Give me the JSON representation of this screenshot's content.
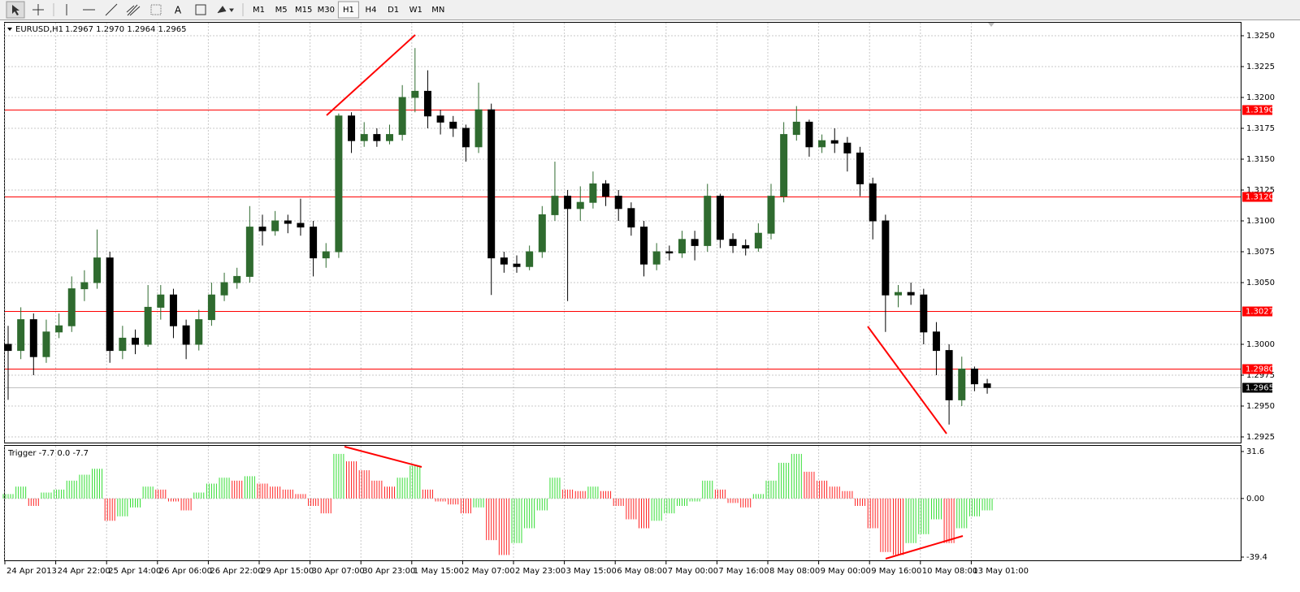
{
  "toolbar": {
    "timeframes": [
      "M1",
      "M5",
      "M15",
      "M30",
      "H1",
      "H4",
      "D1",
      "W1",
      "MN"
    ]
  },
  "chart_data": [
    {
      "type": "candlestick",
      "title": "EURUSD,H1",
      "subtitle": "1.2967 1.2970 1.2964 1.2965",
      "categories": [
        "24 Apr 2013",
        null,
        null,
        null,
        "24 Apr 22:00",
        null,
        null,
        null,
        "25 Apr 14:00",
        null,
        null,
        null,
        "26 Apr 06:00",
        null,
        null,
        null,
        "26 Apr 22:00",
        null,
        null,
        null,
        "29 Apr 15:00",
        null,
        null,
        null,
        "30 Apr 07:00",
        null,
        null,
        null,
        "30 Apr 23:00",
        null,
        null,
        null,
        "1 May 15:00",
        null,
        null,
        null,
        "2 May 07:00",
        null,
        null,
        null,
        "2 May 23:00",
        null,
        null,
        null,
        "3 May 15:00",
        null,
        null,
        null,
        "6 May 08:00",
        null,
        null,
        null,
        "7 May 00:00",
        null,
        null,
        null,
        "7 May 16:00",
        null,
        null,
        null,
        "8 May 08:00",
        null,
        null,
        null,
        "9 May 00:00",
        null,
        null,
        null,
        "9 May 16:00",
        null,
        null,
        null,
        "10 May 08:00",
        null,
        null,
        null,
        "13 May 01:00",
        null
      ],
      "open": [
        1.3,
        1.2995,
        1.302,
        1.299,
        1.301,
        1.3015,
        1.3045,
        1.305,
        1.307,
        1.2995,
        1.3005,
        1.3,
        1.303,
        1.304,
        1.3015,
        1.3,
        1.302,
        1.304,
        1.305,
        1.3055,
        1.3095,
        1.3092,
        1.31,
        1.3098,
        1.3095,
        1.307,
        1.3075,
        1.3185,
        1.3165,
        1.317,
        1.3165,
        1.317,
        1.32,
        1.3205,
        1.3185,
        1.318,
        1.3175,
        1.316,
        1.319,
        1.307,
        1.3065,
        1.3063,
        1.3075,
        1.3105,
        1.312,
        1.311,
        1.3115,
        1.313,
        1.312,
        1.311,
        1.3095,
        1.3065,
        1.3075,
        1.3074,
        1.3085,
        1.308,
        1.312,
        1.3085,
        1.308,
        1.3078,
        1.309,
        1.312,
        1.317,
        1.318,
        1.316,
        1.3165,
        1.3163,
        1.3155,
        1.313,
        1.31,
        1.304,
        1.3042,
        1.304,
        1.301,
        1.2995,
        1.2955,
        1.298,
        1.2968
      ],
      "high": [
        1.3015,
        1.303,
        1.3025,
        1.302,
        1.3025,
        1.3055,
        1.306,
        1.3093,
        1.3075,
        1.3015,
        1.3012,
        1.3048,
        1.3048,
        1.3045,
        1.302,
        1.3028,
        1.305,
        1.3058,
        1.3062,
        1.3112,
        1.3105,
        1.3108,
        1.3105,
        1.3118,
        1.31,
        1.3082,
        1.3187,
        1.3188,
        1.318,
        1.3175,
        1.3178,
        1.321,
        1.324,
        1.3222,
        1.319,
        1.3185,
        1.3178,
        1.3212,
        1.3195,
        1.3075,
        1.3072,
        1.308,
        1.3112,
        1.3148,
        1.3125,
        1.3128,
        1.314,
        1.3133,
        1.3125,
        1.3115,
        1.31,
        1.3082,
        1.308,
        1.3092,
        1.3092,
        1.313,
        1.3122,
        1.309,
        1.3085,
        1.3098,
        1.313,
        1.318,
        1.3193,
        1.3182,
        1.317,
        1.3175,
        1.3168,
        1.316,
        1.3135,
        1.3105,
        1.3048,
        1.305,
        1.3045,
        1.3018,
        1.3,
        1.299,
        1.2982,
        1.2972
      ],
      "low": [
        1.2955,
        1.2988,
        1.2975,
        1.2985,
        1.3005,
        1.301,
        1.3035,
        1.3045,
        1.2985,
        1.2988,
        1.2992,
        1.2998,
        1.302,
        1.3005,
        1.2988,
        1.2995,
        1.3015,
        1.3035,
        1.3045,
        1.305,
        1.308,
        1.3088,
        1.309,
        1.3088,
        1.3055,
        1.3062,
        1.307,
        1.3155,
        1.316,
        1.316,
        1.3162,
        1.3165,
        1.3188,
        1.3175,
        1.317,
        1.3168,
        1.3148,
        1.3155,
        1.304,
        1.3058,
        1.3058,
        1.306,
        1.307,
        1.31,
        1.3035,
        1.31,
        1.311,
        1.3112,
        1.31,
        1.3088,
        1.3055,
        1.306,
        1.3068,
        1.307,
        1.3068,
        1.3075,
        1.3078,
        1.3074,
        1.3072,
        1.3075,
        1.3085,
        1.3115,
        1.3165,
        1.3152,
        1.3155,
        1.3155,
        1.314,
        1.312,
        1.3085,
        1.301,
        1.303,
        1.3032,
        1.3,
        1.2975,
        1.2935,
        1.295,
        1.2962,
        1.296
      ],
      "close": [
        1.2995,
        1.302,
        1.299,
        1.301,
        1.3015,
        1.3045,
        1.305,
        1.307,
        1.2995,
        1.3005,
        1.3,
        1.303,
        1.304,
        1.3015,
        1.3,
        1.302,
        1.304,
        1.305,
        1.3055,
        1.3095,
        1.3092,
        1.31,
        1.3098,
        1.3095,
        1.307,
        1.3075,
        1.3185,
        1.3165,
        1.317,
        1.3165,
        1.317,
        1.32,
        1.3205,
        1.3185,
        1.318,
        1.3175,
        1.316,
        1.319,
        1.307,
        1.3065,
        1.3063,
        1.3075,
        1.3105,
        1.312,
        1.311,
        1.3115,
        1.313,
        1.312,
        1.311,
        1.3095,
        1.3065,
        1.3075,
        1.3074,
        1.3085,
        1.308,
        1.312,
        1.3085,
        1.308,
        1.3078,
        1.309,
        1.312,
        1.317,
        1.318,
        1.316,
        1.3165,
        1.3163,
        1.3155,
        1.313,
        1.31,
        1.304,
        1.3042,
        1.304,
        1.301,
        1.2995,
        1.2955,
        1.298,
        1.2968,
        1.2965
      ],
      "up_color": "#2f6b2f",
      "down_color": "#000000",
      "ylim": [
        1.2925,
        1.325
      ],
      "yticks": [
        {
          "value": 1.2925,
          "label": "1.2925"
        },
        {
          "value": 1.295,
          "label": "1.2950"
        },
        {
          "value": 1.2975,
          "label": "1.2975"
        },
        {
          "value": 1.3,
          "label": "1.3000"
        },
        {
          "value": 1.305,
          "label": "1.3050"
        },
        {
          "value": 1.3075,
          "label": "1.3075"
        },
        {
          "value": 1.31,
          "label": "1.3100"
        },
        {
          "value": 1.3125,
          "label": "1.3125"
        },
        {
          "value": 1.315,
          "label": "1.3150"
        },
        {
          "value": 1.3175,
          "label": "1.3175"
        },
        {
          "value": 1.32,
          "label": "1.3200"
        },
        {
          "value": 1.3225,
          "label": "1.3225"
        },
        {
          "value": 1.325,
          "label": "1.3250"
        }
      ],
      "levels": [
        {
          "value": 1.319,
          "label": "1.3190"
        },
        {
          "value": 1.312,
          "label": "1.3120"
        },
        {
          "value": 1.3027,
          "label": "1.3027"
        },
        {
          "value": 1.298,
          "label": "1.2980"
        }
      ],
      "level_color": "#ff0000",
      "current": {
        "value": 1.2965,
        "label": "1.2965"
      },
      "grid": true
    },
    {
      "type": "histogram",
      "title": "Trigger -7.7 0.0 -7.7",
      "values": [
        3,
        8,
        -5,
        4,
        6,
        12,
        16,
        20,
        -15,
        -12,
        -6,
        8,
        6,
        -2,
        -8,
        4,
        10,
        14,
        12,
        15,
        10,
        8,
        6,
        3,
        -5,
        -10,
        30,
        25,
        19,
        12,
        8,
        14,
        22,
        6,
        -2,
        -4,
        -10,
        -6,
        -28,
        -38,
        -30,
        -20,
        -8,
        14,
        6,
        5,
        8,
        5,
        -5,
        -14,
        -20,
        -15,
        -10,
        -5,
        -2,
        12,
        6,
        -3,
        -6,
        3,
        12,
        24,
        30,
        18,
        12,
        8,
        5,
        -5,
        -20,
        -36,
        -38,
        -30,
        -24,
        -14,
        -30,
        -20,
        -12,
        -8
      ],
      "up_color": "#33dd33",
      "down_color": "#ff2222",
      "ylim": [
        -39.4,
        31.6
      ],
      "yticks": [
        -39.4,
        {
          "value": 0,
          "label": "0.00"
        },
        31.6
      ],
      "grid": true
    }
  ]
}
